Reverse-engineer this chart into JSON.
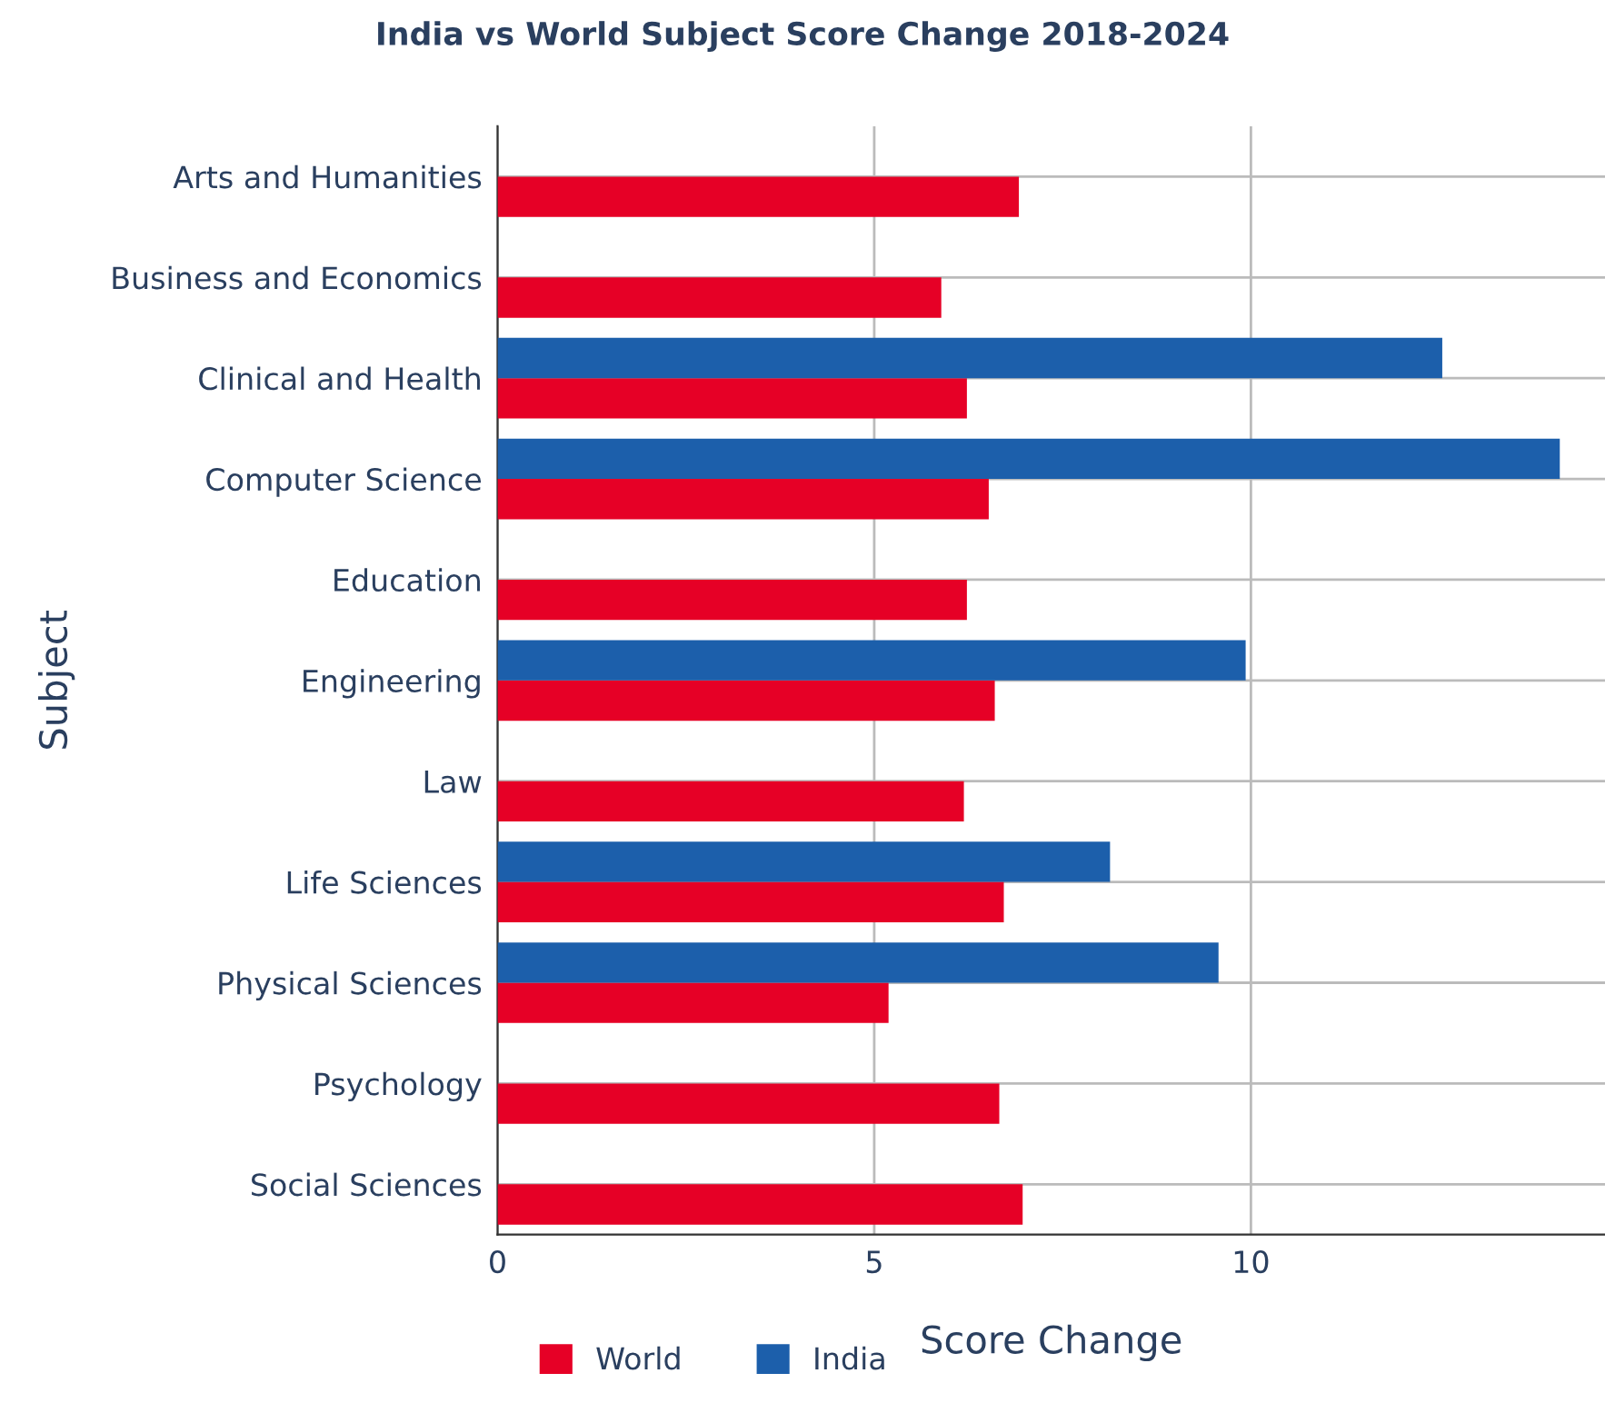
{
  "chart_data": {
    "type": "bar",
    "orientation": "horizontal",
    "title": "India vs World Subject Score Change 2018-2024",
    "xlabel": "Score Change",
    "ylabel": "Subject",
    "categories": [
      "Arts and Humanities",
      "Business and Economics",
      "Clinical and Health",
      "Computer Science",
      "Education",
      "Engineering",
      "Law",
      "Life Sciences",
      "Physical Sciences",
      "Psychology",
      "Social Sciences"
    ],
    "series": [
      {
        "name": "World",
        "color": "#e60026",
        "values": [
          6.92,
          5.89,
          6.23,
          6.52,
          6.23,
          6.6,
          6.19,
          6.72,
          5.19,
          6.66,
          6.97
        ]
      },
      {
        "name": "India",
        "color": "#1c5fab",
        "values": [
          null,
          null,
          12.54,
          14.1,
          null,
          9.93,
          null,
          8.13,
          9.57,
          null,
          null
        ]
      }
    ],
    "xlim": [
      0,
      14.7
    ],
    "xticks": [
      0,
      5,
      10
    ],
    "grid": true,
    "legend": "bottom left"
  }
}
